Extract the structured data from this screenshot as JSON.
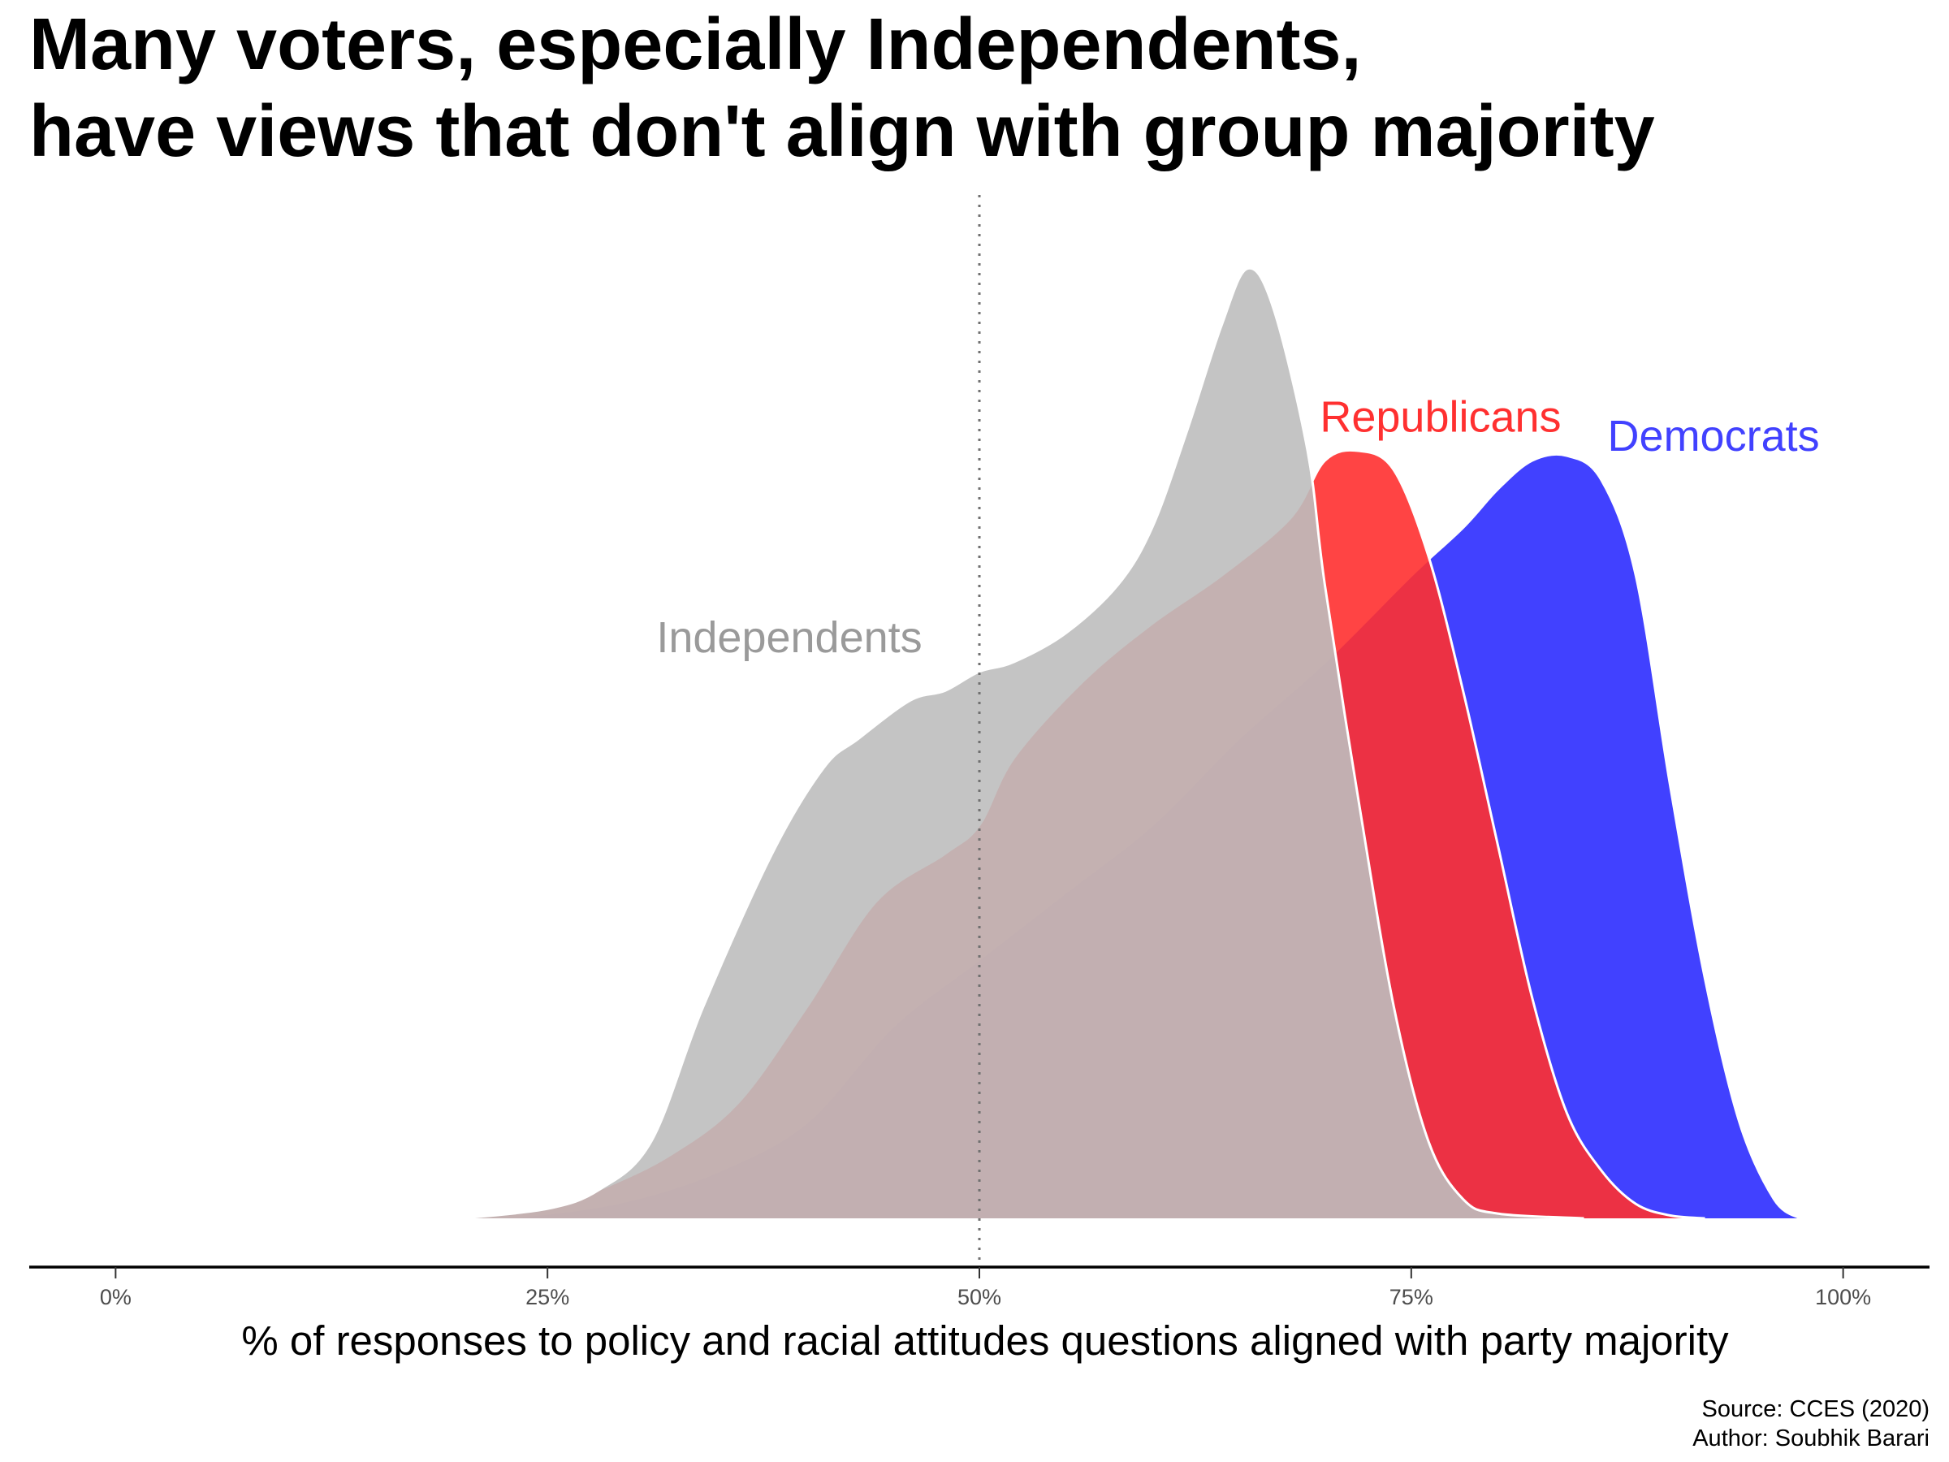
{
  "chart_data": {
    "type": "area",
    "title_lines": [
      "Many voters, especially Independents,",
      "have views that don't align with group majority"
    ],
    "xlabel": "% of responses to policy and racial attitudes questions aligned with party majority",
    "ylabel": "",
    "xlim": [
      -5,
      105
    ],
    "ylim": [
      0,
      1.05
    ],
    "x_ticks": [
      {
        "value": 0,
        "label": "0%"
      },
      {
        "value": 25,
        "label": "25%"
      },
      {
        "value": 50,
        "label": "50%"
      },
      {
        "value": 75,
        "label": "75%"
      },
      {
        "value": 100,
        "label": "100%"
      }
    ],
    "reference_line": {
      "x": 50,
      "style": "dotted"
    },
    "grid": false,
    "caption_lines": [
      "Source: CCES (2020)",
      "Author: Soubhik Barari"
    ],
    "series": [
      {
        "name": "Democrats",
        "color": "#4141ff",
        "label_text": "Democrats",
        "label_anchor": {
          "x": 92.5,
          "y": 0.8
        },
        "x": [
          20,
          25,
          30,
          35,
          40,
          45,
          50,
          55,
          60,
          65,
          70,
          75,
          78,
          80,
          82,
          84,
          86,
          88,
          90,
          92,
          94,
          96,
          97.5
        ],
        "values": [
          0,
          0.005,
          0.02,
          0.05,
          0.1,
          0.2,
          0.27,
          0.34,
          0.41,
          0.5,
          0.58,
          0.67,
          0.72,
          0.76,
          0.79,
          0.795,
          0.77,
          0.67,
          0.45,
          0.25,
          0.1,
          0.02,
          0
        ]
      },
      {
        "name": "Republicans",
        "color": "#ff3030",
        "label_text": "Republicans",
        "label_anchor": {
          "x": 76.7,
          "y": 0.82
        },
        "x": [
          20,
          25,
          28,
          32,
          36,
          40,
          44,
          48,
          50,
          52,
          56,
          60,
          64,
          68,
          70,
          72,
          74,
          76,
          78,
          80,
          82,
          84,
          86,
          88,
          90,
          92
        ],
        "values": [
          0,
          0.01,
          0.03,
          0.065,
          0.12,
          0.22,
          0.33,
          0.38,
          0.41,
          0.48,
          0.56,
          0.62,
          0.67,
          0.73,
          0.79,
          0.8,
          0.78,
          0.69,
          0.55,
          0.39,
          0.23,
          0.11,
          0.05,
          0.015,
          0.003,
          0
        ]
      },
      {
        "name": "Independents",
        "color": "#bebebe",
        "label_text": "Independents",
        "label_anchor": {
          "x": 39,
          "y": 0.59
        },
        "x": [
          20,
          25,
          28,
          31,
          34,
          38,
          41,
          43,
          46,
          48,
          50,
          52,
          55,
          58,
          60,
          62,
          64,
          65.5,
          67,
          69,
          70,
          72,
          74,
          76,
          78,
          80,
          85
        ],
        "values": [
          0,
          0.01,
          0.03,
          0.08,
          0.22,
          0.38,
          0.47,
          0.5,
          0.54,
          0.55,
          0.57,
          0.58,
          0.61,
          0.66,
          0.72,
          0.82,
          0.93,
          0.99,
          0.95,
          0.8,
          0.66,
          0.43,
          0.22,
          0.08,
          0.02,
          0.005,
          0
        ]
      }
    ]
  }
}
